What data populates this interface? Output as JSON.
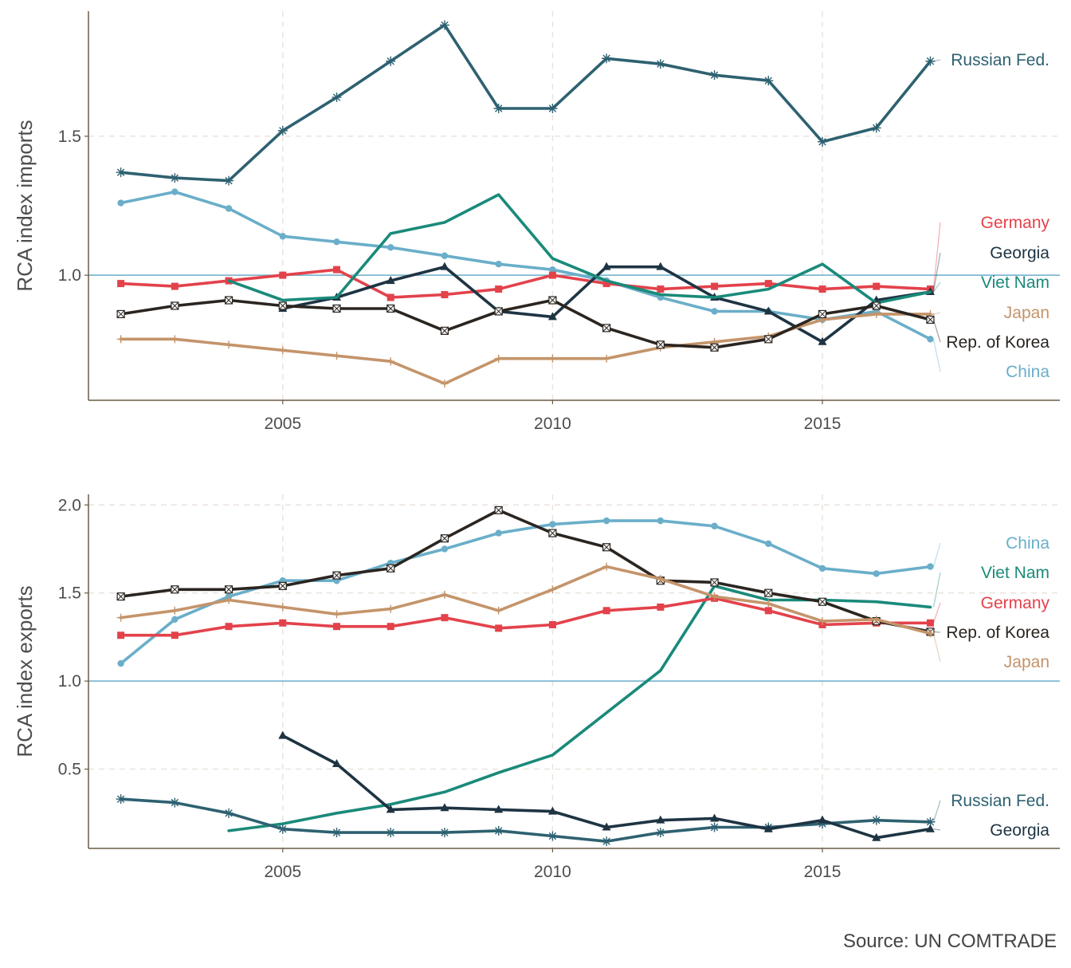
{
  "source": "Source: UN COMTRADE",
  "colors": {
    "Russian Fed.": "#2e6171",
    "China": "#6aaec9",
    "Germany": "#e3424b",
    "Georgia": "#1e3443",
    "Viet Nam": "#1a8a7a",
    "Japan": "#c4946a",
    "Rep. of Korea": "#2b2520",
    "axis": "#6b5a45",
    "grid": "#e8e2dc",
    "refline": "#6aaec9"
  },
  "chart_data": [
    {
      "type": "line",
      "ylabel": "RCA index imports",
      "xlabel": "",
      "xlim": [
        2001.4,
        2019.4
      ],
      "ylim": [
        0.55,
        1.95
      ],
      "xticks": [
        2005,
        2010,
        2015
      ],
      "yticks": [
        1.0,
        1.5
      ],
      "ytick_labels": [
        "1.0",
        "1.5"
      ],
      "reference_line": 1.0,
      "grid": "dashed",
      "series": [
        {
          "name": "Russian Fed.",
          "marker": "asterisk",
          "x": [
            2002,
            2003,
            2004,
            2005,
            2006,
            2007,
            2008,
            2009,
            2010,
            2011,
            2012,
            2013,
            2014,
            2015,
            2016,
            2017
          ],
          "values": [
            1.37,
            1.35,
            1.34,
            1.52,
            1.64,
            1.77,
            1.9,
            1.6,
            1.6,
            1.78,
            1.76,
            1.72,
            1.7,
            1.48,
            1.53,
            1.77
          ]
        },
        {
          "name": "China",
          "marker": "circle",
          "x": [
            2002,
            2003,
            2004,
            2005,
            2006,
            2007,
            2008,
            2009,
            2010,
            2011,
            2012,
            2013,
            2014,
            2015,
            2016,
            2017
          ],
          "values": [
            1.26,
            1.3,
            1.24,
            1.14,
            1.12,
            1.1,
            1.07,
            1.04,
            1.02,
            0.98,
            0.92,
            0.87,
            0.87,
            0.84,
            0.87,
            0.77
          ]
        },
        {
          "name": "Germany",
          "marker": "square",
          "x": [
            2002,
            2003,
            2004,
            2005,
            2006,
            2007,
            2008,
            2009,
            2010,
            2011,
            2012,
            2013,
            2014,
            2015,
            2016,
            2017
          ],
          "values": [
            0.97,
            0.96,
            0.98,
            1.0,
            1.02,
            0.92,
            0.93,
            0.95,
            1.0,
            0.97,
            0.95,
            0.96,
            0.97,
            0.95,
            0.96,
            0.95
          ]
        },
        {
          "name": "Georgia",
          "marker": "triangle",
          "x": [
            2005,
            2006,
            2007,
            2008,
            2009,
            2010,
            2011,
            2012,
            2013,
            2014,
            2015,
            2016,
            2017
          ],
          "values": [
            0.88,
            0.92,
            0.98,
            1.03,
            0.87,
            0.85,
            1.03,
            1.03,
            0.92,
            0.87,
            0.76,
            0.91,
            0.94
          ]
        },
        {
          "name": "Viet Nam",
          "marker": "none",
          "x": [
            2004,
            2005,
            2006,
            2007,
            2008,
            2009,
            2010,
            2011,
            2012,
            2013,
            2014,
            2015,
            2016,
            2017
          ],
          "values": [
            0.98,
            0.91,
            0.92,
            1.15,
            1.19,
            1.29,
            1.06,
            0.98,
            0.93,
            0.92,
            0.95,
            1.04,
            0.9,
            0.94
          ]
        },
        {
          "name": "Japan",
          "marker": "plus",
          "x": [
            2002,
            2003,
            2004,
            2005,
            2006,
            2007,
            2008,
            2009,
            2010,
            2011,
            2012,
            2013,
            2014,
            2015,
            2016,
            2017
          ],
          "values": [
            0.77,
            0.77,
            0.75,
            0.73,
            0.71,
            0.69,
            0.61,
            0.7,
            0.7,
            0.7,
            0.74,
            0.76,
            0.78,
            0.84,
            0.86,
            0.86
          ]
        },
        {
          "name": "Rep. of Korea",
          "marker": "boxx",
          "x": [
            2002,
            2003,
            2004,
            2005,
            2006,
            2007,
            2008,
            2009,
            2010,
            2011,
            2012,
            2013,
            2014,
            2015,
            2016,
            2017
          ],
          "values": [
            0.86,
            0.89,
            0.91,
            0.89,
            0.88,
            0.88,
            0.8,
            0.87,
            0.91,
            0.81,
            0.75,
            0.74,
            0.77,
            0.86,
            0.89,
            0.84
          ]
        }
      ],
      "end_labels": [
        "Russian Fed.",
        "Germany",
        "Georgia",
        "Viet Nam",
        "Japan",
        "Rep. of Korea",
        "China"
      ]
    },
    {
      "type": "line",
      "ylabel": "RCA index exports",
      "xlabel": "",
      "xlim": [
        2001.4,
        2019.4
      ],
      "ylim": [
        0.05,
        2.06
      ],
      "xticks": [
        2005,
        2010,
        2015
      ],
      "yticks": [
        0.5,
        1.0,
        1.5,
        2.0
      ],
      "ytick_labels": [
        "0.5",
        "1.0",
        "1.5",
        "2.0"
      ],
      "reference_line": 1.0,
      "grid": "dashed",
      "series": [
        {
          "name": "China",
          "marker": "circle",
          "x": [
            2002,
            2003,
            2004,
            2005,
            2006,
            2007,
            2008,
            2009,
            2010,
            2011,
            2012,
            2013,
            2014,
            2015,
            2016,
            2017
          ],
          "values": [
            1.1,
            1.35,
            1.48,
            1.57,
            1.57,
            1.67,
            1.75,
            1.84,
            1.89,
            1.91,
            1.91,
            1.88,
            1.78,
            1.64,
            1.61,
            1.65
          ]
        },
        {
          "name": "Viet Nam",
          "marker": "none",
          "x": [
            2004,
            2005,
            2006,
            2007,
            2008,
            2009,
            2010,
            2011,
            2012,
            2013,
            2014,
            2015,
            2016,
            2017
          ],
          "values": [
            0.15,
            0.19,
            0.25,
            0.3,
            0.37,
            0.48,
            0.58,
            0.82,
            1.06,
            1.54,
            1.46,
            1.46,
            1.45,
            1.42
          ]
        },
        {
          "name": "Germany",
          "marker": "square",
          "x": [
            2002,
            2003,
            2004,
            2005,
            2006,
            2007,
            2008,
            2009,
            2010,
            2011,
            2012,
            2013,
            2014,
            2015,
            2016,
            2017
          ],
          "values": [
            1.26,
            1.26,
            1.31,
            1.33,
            1.31,
            1.31,
            1.36,
            1.3,
            1.32,
            1.4,
            1.42,
            1.47,
            1.4,
            1.32,
            1.33,
            1.33
          ]
        },
        {
          "name": "Rep. of Korea",
          "marker": "boxx",
          "x": [
            2002,
            2003,
            2004,
            2005,
            2006,
            2007,
            2008,
            2009,
            2010,
            2011,
            2012,
            2013,
            2014,
            2015,
            2016,
            2017
          ],
          "values": [
            1.48,
            1.52,
            1.52,
            1.54,
            1.6,
            1.64,
            1.81,
            1.97,
            1.84,
            1.76,
            1.57,
            1.56,
            1.5,
            1.45,
            1.34,
            1.28
          ]
        },
        {
          "name": "Japan",
          "marker": "plus",
          "x": [
            2002,
            2003,
            2004,
            2005,
            2006,
            2007,
            2008,
            2009,
            2010,
            2011,
            2012,
            2013,
            2014,
            2015,
            2016,
            2017
          ],
          "values": [
            1.36,
            1.4,
            1.46,
            1.42,
            1.38,
            1.41,
            1.49,
            1.4,
            1.52,
            1.65,
            1.58,
            1.48,
            1.44,
            1.34,
            1.35,
            1.27
          ]
        },
        {
          "name": "Russian Fed.",
          "marker": "asterisk",
          "x": [
            2002,
            2003,
            2004,
            2005,
            2006,
            2007,
            2008,
            2009,
            2010,
            2011,
            2012,
            2013,
            2014,
            2015,
            2016,
            2017
          ],
          "values": [
            0.33,
            0.31,
            0.25,
            0.16,
            0.14,
            0.14,
            0.14,
            0.15,
            0.12,
            0.09,
            0.14,
            0.17,
            0.17,
            0.19,
            0.21,
            0.2
          ]
        },
        {
          "name": "Georgia",
          "marker": "triangle",
          "x": [
            2005,
            2006,
            2007,
            2008,
            2009,
            2010,
            2011,
            2012,
            2013,
            2014,
            2015,
            2016,
            2017
          ],
          "values": [
            0.69,
            0.53,
            0.27,
            0.28,
            0.27,
            0.26,
            0.17,
            0.21,
            0.22,
            0.16,
            0.21,
            0.11,
            0.16
          ]
        }
      ],
      "end_labels": [
        "China",
        "Viet Nam",
        "Germany",
        "Rep. of Korea",
        "Japan",
        "Russian Fed.",
        "Georgia"
      ]
    }
  ]
}
